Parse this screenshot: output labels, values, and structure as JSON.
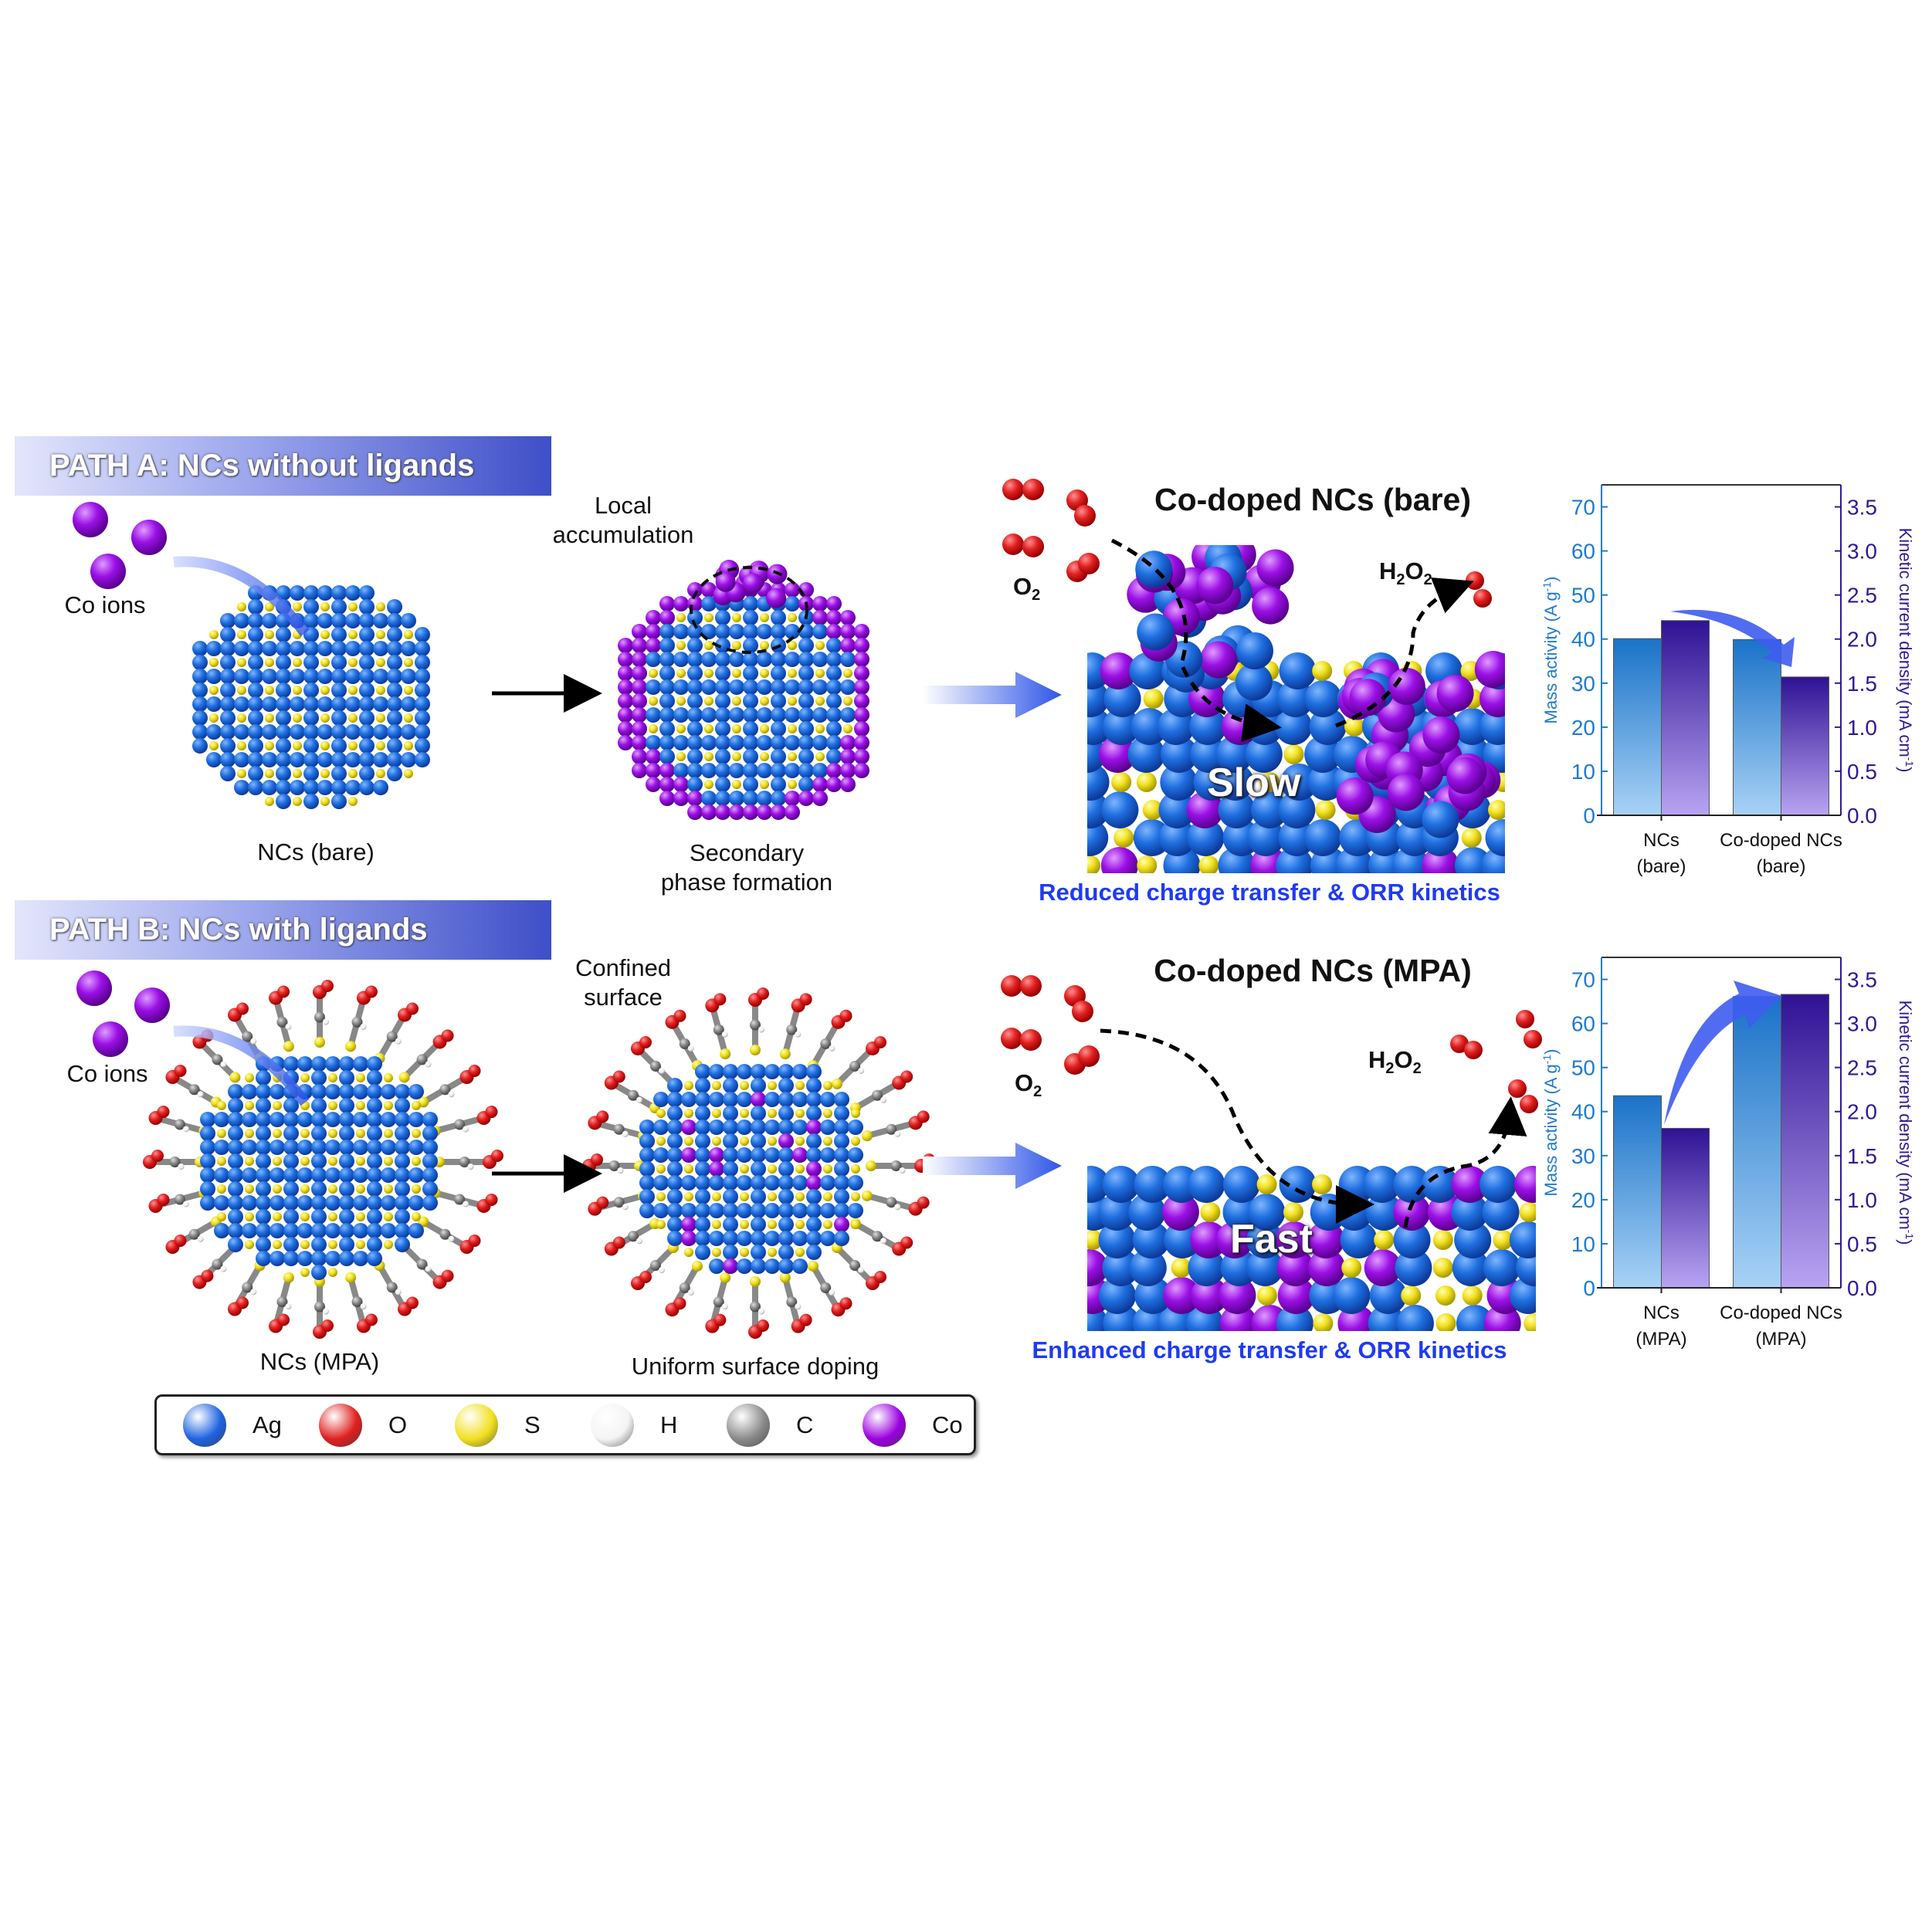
{
  "path_a": {
    "banner": "PATH A: NCs without ligands",
    "co_ions": "Co ions",
    "nc_label": "NCs (bare)",
    "local_label": "Local\naccumulation",
    "secondary_label": "Secondary\nphase formation",
    "scene_title": "Co-doped NCs (bare)",
    "o2": "O",
    "o2_sub": "2",
    "h2o2_h": "H",
    "h2o2_sub1": "2",
    "h2o2_o": "O",
    "h2o2_sub2": "2",
    "speed": "Slow",
    "caption": "Reduced charge transfer & ORR kinetics"
  },
  "path_b": {
    "banner": "PATH B: NCs with ligands",
    "co_ions": "Co ions",
    "nc_label": "NCs (MPA)",
    "confined_label": "Confined\nsurface",
    "uniform_label": "Uniform surface doping",
    "scene_title": "Co-doped NCs (MPA)",
    "o2": "O",
    "o2_sub": "2",
    "h2o2_h": "H",
    "h2o2_sub1": "2",
    "h2o2_o": "O",
    "h2o2_sub2": "2",
    "speed": "Fast",
    "caption": "Enhanced charge transfer & ORR kinetics"
  },
  "legend": [
    {
      "label": "Ag",
      "color": "#1f63e0"
    },
    {
      "label": "O",
      "color": "#e02020"
    },
    {
      "label": "S",
      "color": "#f2e020"
    },
    {
      "label": "H",
      "color": "#f4f4f4"
    },
    {
      "label": "C",
      "color": "#8a8a8a"
    },
    {
      "label": "Co",
      "color": "#9b00e0"
    }
  ],
  "colors": {
    "ag": "#1f6fe0",
    "co": "#9b10e6",
    "s": "#f2e020",
    "o": "#e02020",
    "left_axis": "#1f7ad0",
    "right_axis": "#2e1a96"
  },
  "chart_data": [
    {
      "type": "bar",
      "categories": [
        "NCs\n(bare)",
        "Co-doped NCs\n(bare)"
      ],
      "category_lines": [
        [
          "NCs",
          "(bare)"
        ],
        [
          "Co-doped NCs",
          "(bare)"
        ]
      ],
      "series": [
        {
          "name": "Mass activity",
          "axis": "left",
          "values": [
            40.1,
            39.9
          ]
        },
        {
          "name": "Kinetic current density",
          "axis": "right",
          "values": [
            2.21,
            1.57
          ]
        }
      ],
      "ylabel": "Mass activity (A g-1)",
      "ylabel_parts": [
        "Mass activity (A g",
        "-1",
        ")"
      ],
      "y2label": "Kinetic current density (mA cm-1)",
      "y2label_parts": [
        "Kinetic current density (mA cm",
        "-1",
        ")"
      ],
      "ylim": [
        0,
        75
      ],
      "y2lim": [
        0,
        3.75
      ],
      "yticks": [
        "0",
        "10",
        "20",
        "30",
        "40",
        "50",
        "60",
        "70"
      ],
      "y2ticks": [
        "0.0",
        "0.5",
        "1.0",
        "1.5",
        "2.0",
        "2.5",
        "3.0",
        "3.5"
      ],
      "trend": "down"
    },
    {
      "type": "bar",
      "categories": [
        "NCs\n(MPA)",
        "Co-doped NCs\n(MPA)"
      ],
      "category_lines": [
        [
          "NCs",
          "(MPA)"
        ],
        [
          "Co-doped NCs",
          "(MPA)"
        ]
      ],
      "series": [
        {
          "name": "Mass activity",
          "axis": "left",
          "values": [
            43.6,
            66.1
          ]
        },
        {
          "name": "Kinetic current density",
          "axis": "right",
          "values": [
            1.81,
            3.33
          ]
        }
      ],
      "ylabel": "Mass activity (A g-1)",
      "ylabel_parts": [
        "Mass activity (A g",
        "-1",
        ")"
      ],
      "y2label": "Kinetic current density (mA cm-1)",
      "y2label_parts": [
        "Kinetic current density (mA cm",
        "-1",
        ")"
      ],
      "ylim": [
        0,
        75
      ],
      "y2lim": [
        0,
        3.75
      ],
      "yticks": [
        "0",
        "10",
        "20",
        "30",
        "40",
        "50",
        "60",
        "70"
      ],
      "y2ticks": [
        "0.0",
        "0.5",
        "1.0",
        "1.5",
        "2.0",
        "2.5",
        "3.0",
        "3.5"
      ],
      "trend": "up"
    }
  ]
}
